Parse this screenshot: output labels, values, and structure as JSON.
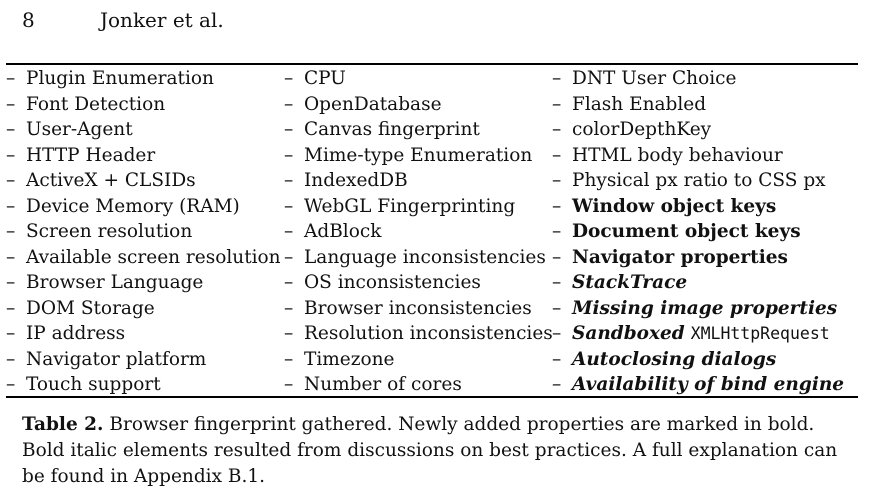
{
  "header": {
    "page_number": "8",
    "running_title": "Jonker et al."
  },
  "table": {
    "columns": [
      [
        {
          "text": "Plugin Enumeration",
          "style": "normal"
        },
        {
          "text": "Font Detection",
          "style": "normal"
        },
        {
          "text": "User-Agent",
          "style": "normal"
        },
        {
          "text": "HTTP Header",
          "style": "normal"
        },
        {
          "text": "ActiveX + CLSIDs",
          "style": "normal"
        },
        {
          "text": "Device Memory (RAM)",
          "style": "normal"
        },
        {
          "text": "Screen resolution",
          "style": "normal"
        },
        {
          "text": "Available screen resolution",
          "style": "normal"
        },
        {
          "text": "Browser Language",
          "style": "normal"
        },
        {
          "text": "DOM Storage",
          "style": "normal"
        },
        {
          "text": "IP address",
          "style": "normal"
        },
        {
          "text": "Navigator platform",
          "style": "normal"
        },
        {
          "text": "Touch support",
          "style": "normal"
        }
      ],
      [
        {
          "text": "CPU",
          "style": "normal"
        },
        {
          "text": "OpenDatabase",
          "style": "normal"
        },
        {
          "text": "Canvas fingerprint",
          "style": "normal"
        },
        {
          "text": "Mime-type Enumeration",
          "style": "normal"
        },
        {
          "text": "IndexedDB",
          "style": "normal"
        },
        {
          "text": "WebGL Fingerprinting",
          "style": "normal"
        },
        {
          "text": "AdBlock",
          "style": "normal"
        },
        {
          "text": "Language inconsistencies",
          "style": "normal"
        },
        {
          "text": "OS inconsistencies",
          "style": "normal"
        },
        {
          "text": "Browser inconsistencies",
          "style": "normal"
        },
        {
          "text": "Resolution inconsistencies",
          "style": "normal"
        },
        {
          "text": "Timezone",
          "style": "normal"
        },
        {
          "text": "Number of cores",
          "style": "normal"
        }
      ],
      [
        {
          "text": "DNT User Choice",
          "style": "normal"
        },
        {
          "text": "Flash Enabled",
          "style": "normal"
        },
        {
          "text": "colorDepthKey",
          "style": "normal"
        },
        {
          "text": "HTML body behaviour",
          "style": "normal"
        },
        {
          "text": "Physical px ratio to CSS px",
          "style": "normal"
        },
        {
          "text": "Window object keys",
          "style": "bold"
        },
        {
          "text": "Document object keys",
          "style": "bold"
        },
        {
          "text": "Navigator properties",
          "style": "bold"
        },
        {
          "text": "StackTrace",
          "style": "bold-italic"
        },
        {
          "text": "Missing image properties",
          "style": "bold-italic"
        },
        {
          "text": "Sandboxed",
          "style": "bold-italic",
          "mono": "XMLHttpRequest"
        },
        {
          "text": "Autoclosing dialogs",
          "style": "bold-italic"
        },
        {
          "text": "Availability of bind engine",
          "style": "bold-italic"
        }
      ]
    ]
  },
  "caption": {
    "label": "Table 2.",
    "text": "Browser fingerprint gathered. Newly added properties are marked in bold. Bold italic elements resulted from discussions on best practices. A full explanation can be found in Appendix B.1."
  }
}
